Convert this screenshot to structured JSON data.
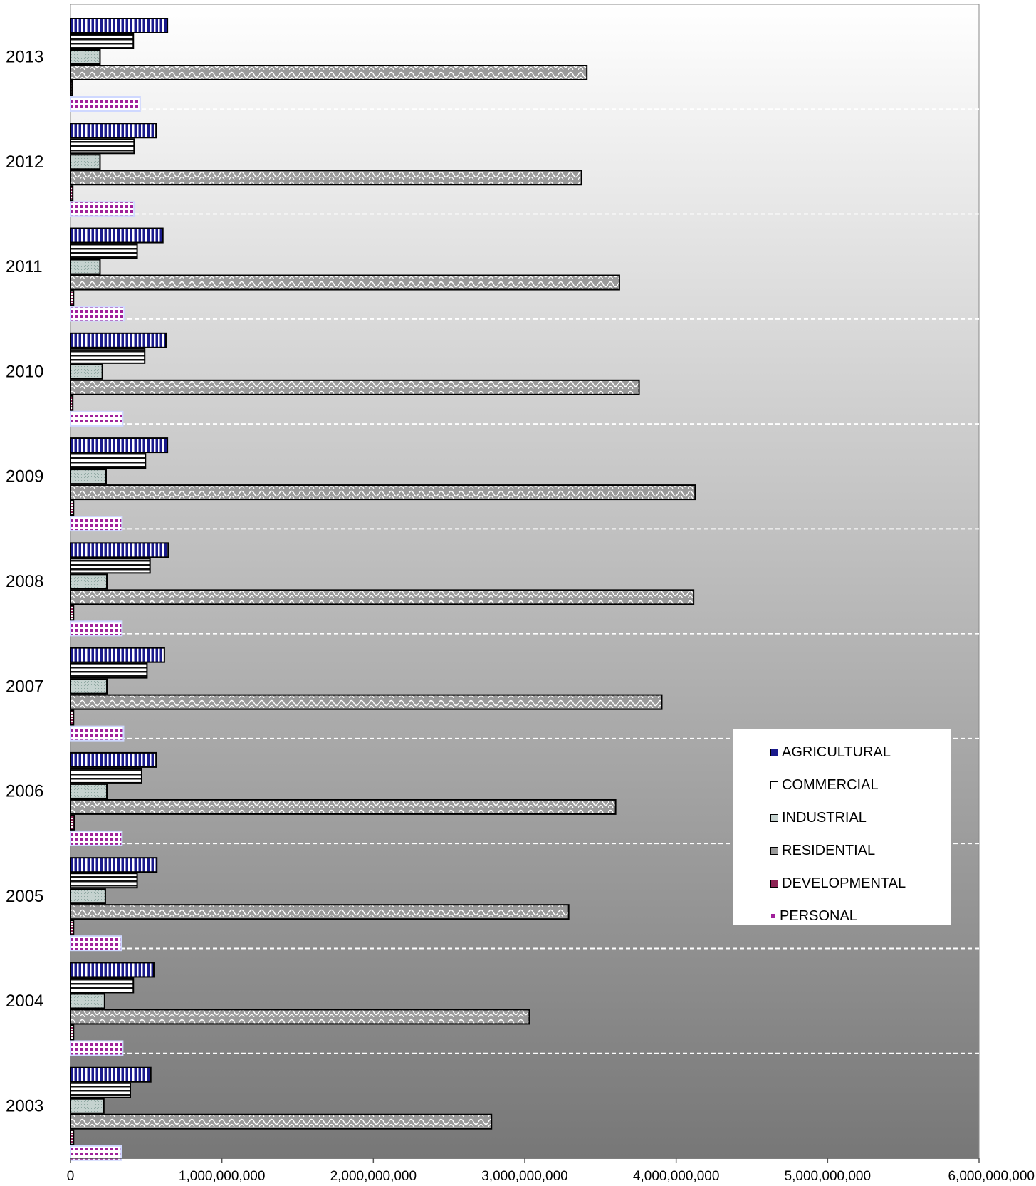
{
  "chart_data": {
    "type": "bar",
    "orientation": "horizontal",
    "categories": [
      "2003",
      "2004",
      "2005",
      "2006",
      "2007",
      "2008",
      "2009",
      "2010",
      "2011",
      "2012",
      "2013"
    ],
    "x_tick_labels": [
      "0",
      "1,000,000,000",
      "2,000,000,000",
      "3,000,000,000",
      "4,000,000,000",
      "5,000,000,000",
      "6,000,000,000"
    ],
    "xlim": [
      0,
      6000000000
    ],
    "grid": "horizontal dashed separators between years",
    "legend_position": "lower-right",
    "series": [
      {
        "name": "AGRICULTURAL",
        "color": "#1a1a8c",
        "values": [
          530000000,
          550000000,
          570000000,
          565000000,
          620000000,
          645000000,
          640000000,
          630000000,
          610000000,
          565000000,
          640000000
        ]
      },
      {
        "name": "COMMERCIAL",
        "color": "#ffffff",
        "values": [
          395000000,
          415000000,
          440000000,
          470000000,
          505000000,
          525000000,
          495000000,
          490000000,
          440000000,
          420000000,
          415000000
        ]
      },
      {
        "name": "INDUSTRIAL",
        "color": "#c8d4d0",
        "values": [
          220000000,
          225000000,
          230000000,
          240000000,
          240000000,
          240000000,
          235000000,
          210000000,
          195000000,
          195000000,
          195000000
        ]
      },
      {
        "name": "RESIDENTIAL",
        "color": "#a0a0a0",
        "values": [
          2780000000,
          3030000000,
          3290000000,
          3600000000,
          3905000000,
          4115000000,
          4125000000,
          3755000000,
          3625000000,
          3375000000,
          3410000000
        ]
      },
      {
        "name": "DEVELOPMENTAL",
        "color": "#8b2252",
        "values": [
          20000000,
          20000000,
          20000000,
          25000000,
          20000000,
          20000000,
          20000000,
          15000000,
          20000000,
          15000000,
          10000000
        ]
      },
      {
        "name": "PERSONAL",
        "color": "#a0209a",
        "values": [
          335000000,
          345000000,
          335000000,
          340000000,
          350000000,
          340000000,
          340000000,
          345000000,
          355000000,
          420000000,
          460000000
        ]
      }
    ]
  }
}
